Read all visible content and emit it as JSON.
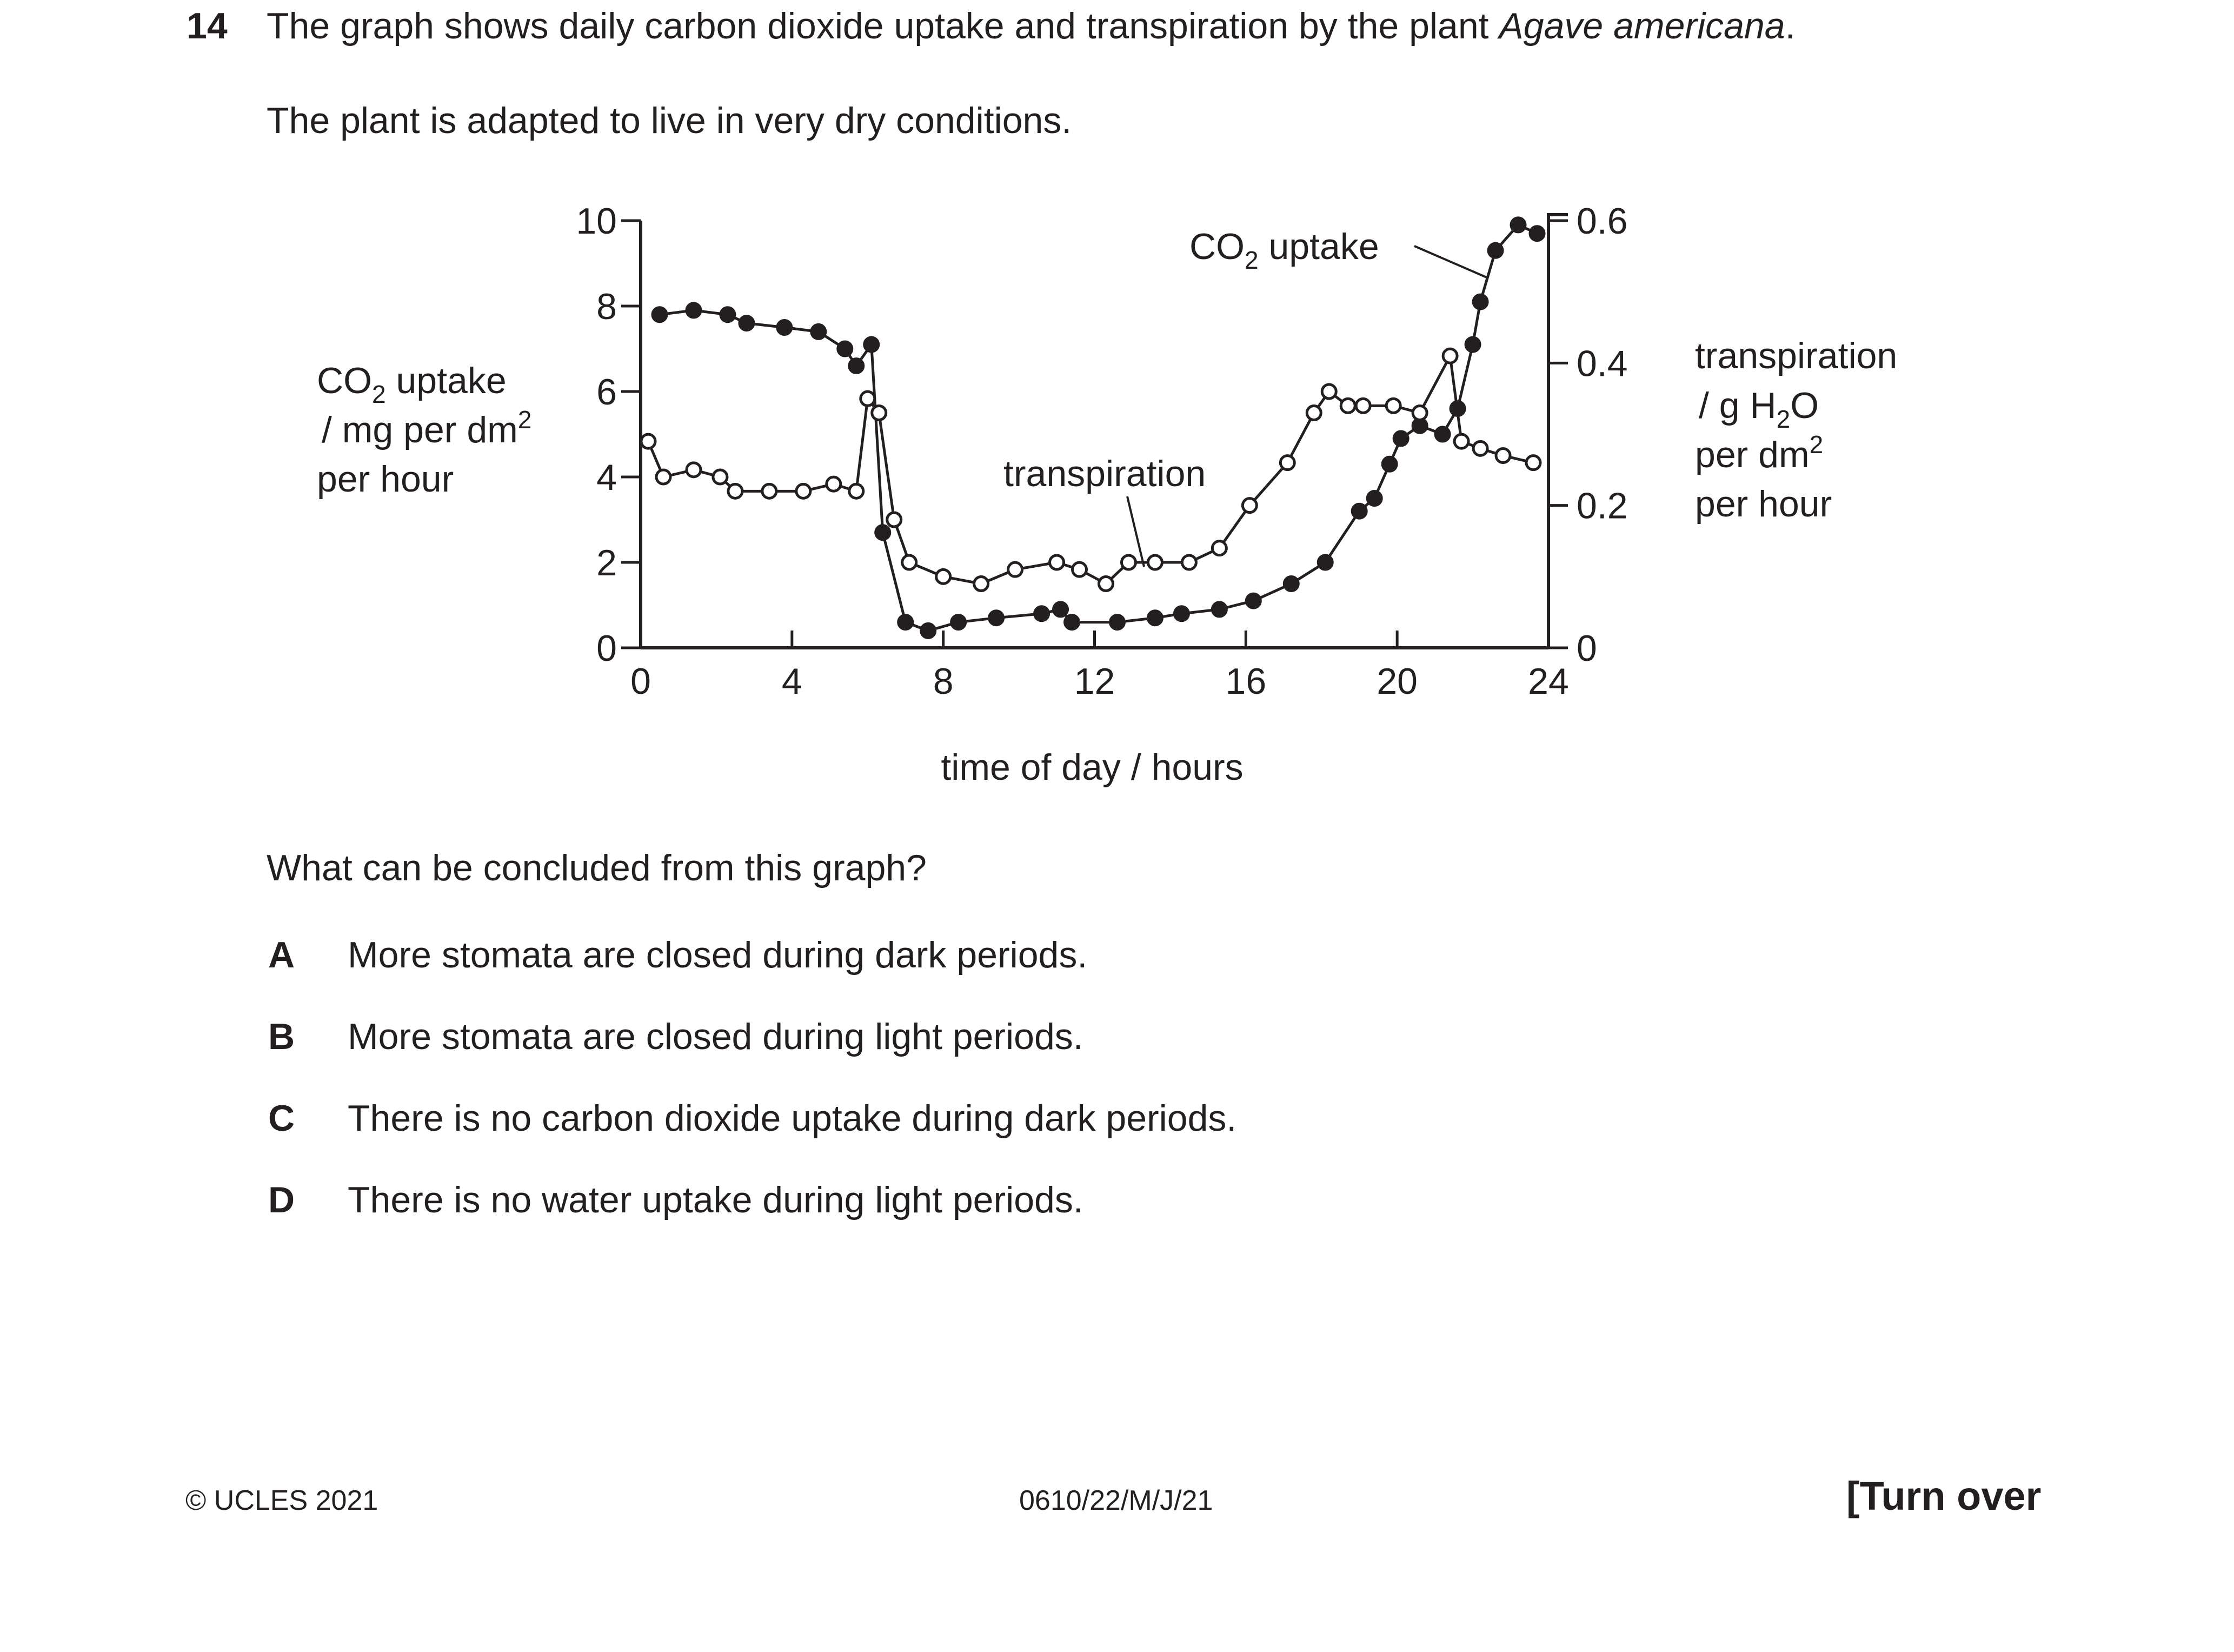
{
  "question": {
    "number": "14",
    "stem_prefix": "The graph shows daily carbon dioxide uptake and transpiration by the plant ",
    "stem_italic": "Agave americana",
    "stem_suffix": ".",
    "context": "The plant is adapted to live in very dry conditions.",
    "prompt": "What can be concluded from this graph?",
    "options": [
      {
        "letter": "A",
        "text": "More stomata are closed during dark periods."
      },
      {
        "letter": "B",
        "text": "More stomata are closed during light periods."
      },
      {
        "letter": "C",
        "text": "There is no carbon dioxide uptake during dark periods."
      },
      {
        "letter": "D",
        "text": "There is no water uptake during light periods."
      }
    ]
  },
  "chart_data": {
    "type": "line",
    "xlabel": "time of day / hours",
    "x_ticks": [
      "0",
      "4",
      "8",
      "12",
      "16",
      "20",
      "24"
    ],
    "xlim": [
      0,
      24
    ],
    "ylabel_left": {
      "l1a": "CO",
      "l1sub": "2",
      "l1b": " uptake",
      "l2a": "/ mg per dm",
      "l2sup": "2",
      "l3": "per hour"
    },
    "ylim_left": [
      0,
      10
    ],
    "y_ticks_left": [
      "0",
      "2",
      "4",
      "6",
      "8",
      "10"
    ],
    "ylabel_right": {
      "l1": "transpiration",
      "l2a": "/ g H",
      "l2sub": "2",
      "l2b": "O",
      "l3a": "per dm",
      "l3sup": "2",
      "l4": "per hour"
    },
    "ylim_right": [
      0,
      0.6
    ],
    "y_ticks_right": [
      "0",
      "0.2",
      "0.4",
      "0.6"
    ],
    "grid": false,
    "series": [
      {
        "label": {
          "a": "CO",
          "sub": "2",
          "b": " uptake"
        },
        "marker": "filled-circle",
        "axis": "left",
        "x": [
          0.5,
          1.4,
          2.3,
          2.8,
          3.8,
          4.7,
          5.4,
          5.7,
          6.1,
          6.4,
          7.0,
          7.6,
          8.4,
          9.4,
          10.6,
          11.1,
          11.4,
          12.6,
          13.6,
          14.3,
          15.3,
          16.2,
          17.2,
          18.1,
          19.0,
          19.4,
          19.8,
          20.1,
          20.6,
          21.2,
          21.6,
          22.0,
          22.2,
          22.6,
          23.2,
          23.7
        ],
        "y": [
          7.8,
          7.9,
          7.8,
          7.6,
          7.5,
          7.4,
          7.0,
          6.6,
          7.1,
          2.7,
          0.6,
          0.4,
          0.6,
          0.7,
          0.8,
          0.9,
          0.6,
          0.6,
          0.7,
          0.8,
          0.9,
          1.1,
          1.5,
          2.0,
          3.2,
          3.5,
          4.3,
          4.9,
          5.2,
          5.0,
          5.6,
          7.1,
          8.1,
          9.3,
          9.9,
          9.7
        ]
      },
      {
        "label": {
          "a": "transpiration",
          "sub": "",
          "b": ""
        },
        "marker": "open-circle",
        "axis": "right",
        "x": [
          0.2,
          0.6,
          1.4,
          2.1,
          2.5,
          3.4,
          4.3,
          5.1,
          5.7,
          6.0,
          6.3,
          6.7,
          7.1,
          8.0,
          9.0,
          9.9,
          11.0,
          11.6,
          12.3,
          12.9,
          13.6,
          14.5,
          15.3,
          16.1,
          17.1,
          17.8,
          18.2,
          18.7,
          19.1,
          19.9,
          20.6,
          21.4,
          21.7,
          22.2,
          22.8,
          23.6
        ],
        "y": [
          0.29,
          0.24,
          0.25,
          0.24,
          0.22,
          0.22,
          0.22,
          0.23,
          0.22,
          0.35,
          0.33,
          0.18,
          0.12,
          0.1,
          0.09,
          0.11,
          0.12,
          0.11,
          0.09,
          0.12,
          0.12,
          0.12,
          0.14,
          0.2,
          0.26,
          0.33,
          0.36,
          0.34,
          0.34,
          0.34,
          0.33,
          0.41,
          0.29,
          0.28,
          0.27,
          0.26
        ]
      }
    ]
  },
  "footer": {
    "copyright": "© UCLES 2021",
    "code": "0610/22/M/J/21",
    "turn_over": "[Turn over"
  }
}
